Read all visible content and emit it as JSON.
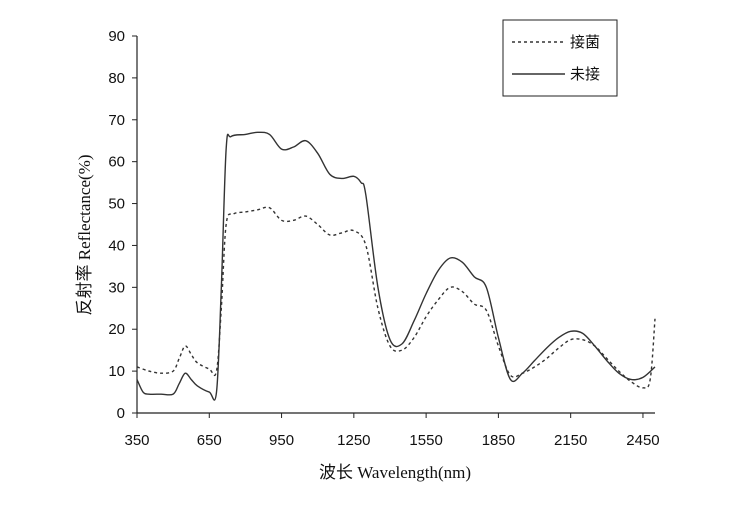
{
  "chart_data": {
    "type": "line",
    "xlabel": "波长 Wavelength(nm)",
    "ylabel": "反射率 Reflectance(%)",
    "xlim": [
      350,
      2500
    ],
    "ylim": [
      0,
      90
    ],
    "xticks": [
      350,
      650,
      950,
      1250,
      1550,
      1850,
      2150,
      2450
    ],
    "yticks": [
      0,
      10,
      20,
      30,
      40,
      50,
      60,
      70,
      80,
      90
    ],
    "grid": false,
    "legend_position": "top-right",
    "series": [
      {
        "name": "接菌",
        "style": "dashed",
        "x": [
          350,
          400,
          450,
          500,
          525,
          550,
          575,
          600,
          650,
          680,
          700,
          720,
          750,
          800,
          850,
          900,
          950,
          1000,
          1050,
          1100,
          1150,
          1200,
          1250,
          1300,
          1350,
          1400,
          1450,
          1500,
          1550,
          1600,
          1650,
          1700,
          1750,
          1800,
          1850,
          1900,
          1950,
          2000,
          2050,
          2100,
          2150,
          2200,
          2250,
          2300,
          2350,
          2400,
          2450,
          2480,
          2500
        ],
        "values": [
          11,
          10,
          9.5,
          10,
          13,
          16,
          14,
          12,
          10.5,
          10,
          25,
          45,
          47.5,
          48,
          48.5,
          49,
          46,
          46,
          47,
          45,
          42.5,
          43,
          43.5,
          40,
          25,
          16,
          15,
          18,
          23,
          27,
          30,
          29,
          26,
          24.5,
          16,
          9,
          9.5,
          11,
          13,
          15.5,
          17.5,
          17.5,
          16,
          13,
          10,
          7.5,
          6,
          8,
          22.5
        ]
      },
      {
        "name": "未接",
        "style": "solid",
        "x": [
          350,
          375,
          400,
          450,
          500,
          525,
          550,
          575,
          600,
          650,
          680,
          700,
          720,
          740,
          800,
          850,
          900,
          950,
          1000,
          1050,
          1100,
          1150,
          1200,
          1250,
          1280,
          1300,
          1350,
          1400,
          1450,
          1500,
          1550,
          1600,
          1650,
          1700,
          1750,
          1800,
          1850,
          1900,
          1950,
          2000,
          2050,
          2100,
          2150,
          2200,
          2250,
          2300,
          2350,
          2400,
          2450,
          2500
        ],
        "values": [
          8,
          5,
          4.5,
          4.5,
          4.5,
          7,
          9.5,
          8,
          6.5,
          5,
          5,
          30,
          63,
          66,
          66.5,
          67,
          66.5,
          63,
          63.5,
          65,
          62,
          57,
          56,
          56.5,
          55,
          52,
          30,
          17.5,
          16.5,
          22,
          28.5,
          34,
          37,
          36,
          32.5,
          30,
          18,
          8,
          9.5,
          12.5,
          15.5,
          18,
          19.5,
          19,
          16,
          12.5,
          9.5,
          8,
          8.5,
          11
        ]
      }
    ]
  }
}
